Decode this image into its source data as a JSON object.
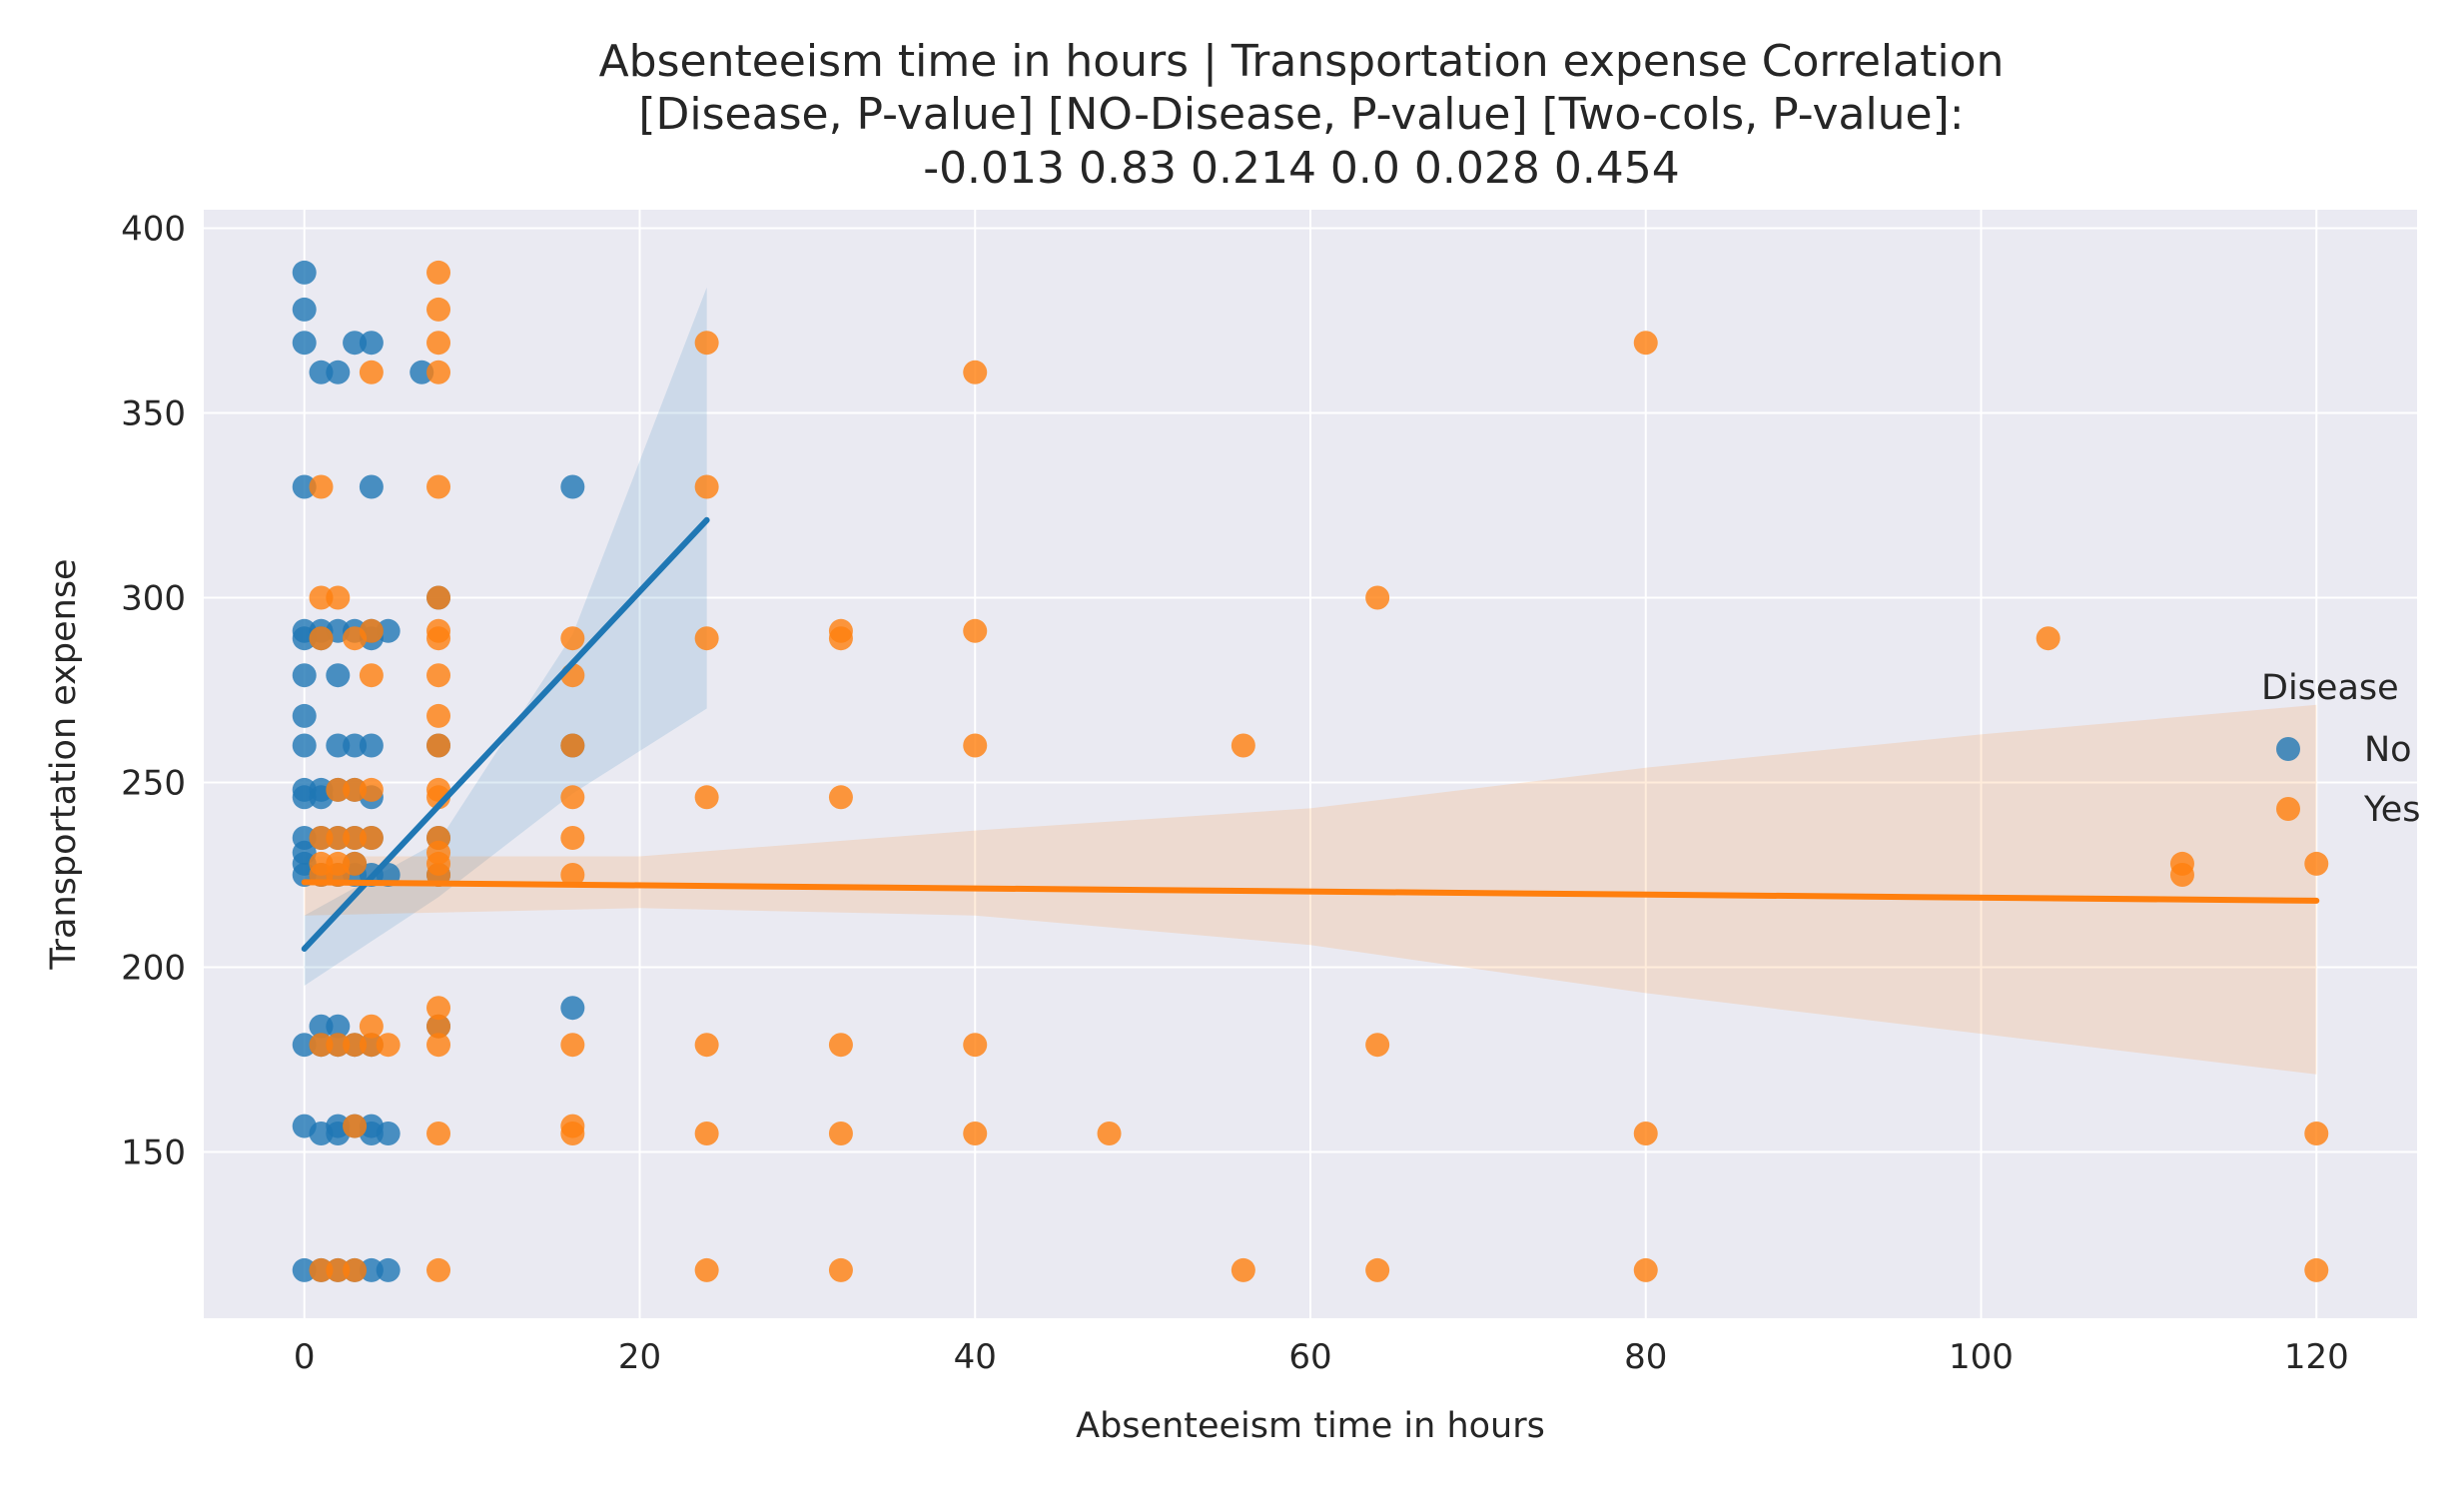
{
  "chart_data": {
    "type": "scatter",
    "title_lines": [
      "Absenteeism time in hours | Transportation expense    Correlation",
      "[Disease,        P-value]    [NO-Disease,     P-value]    [Two-cols,  P-value]:",
      "-0.013                0.83                0.214                  0.0          0.028           0.454"
    ],
    "xlabel": "Absenteeism time in hours",
    "ylabel": "Transportation expense",
    "xlim": [
      -6,
      126
    ],
    "ylim": [
      105,
      405
    ],
    "xticks": [
      0,
      20,
      40,
      60,
      80,
      100,
      120
    ],
    "yticks": [
      150,
      200,
      250,
      300,
      350,
      400
    ],
    "grid": true,
    "legend": {
      "title": "Disease",
      "placement": "right",
      "entries": [
        "No",
        "Yes"
      ]
    },
    "colors": {
      "No": "#1f77b4",
      "Yes": "#ff7f0e",
      "background": "#eaeaf2",
      "grid": "#ffffff"
    },
    "series": [
      {
        "name": "No",
        "color": "#1f77b4",
        "regression": {
          "x": [
            0,
            24
          ],
          "y": [
            205,
            321
          ]
        },
        "ci": {
          "x": [
            0,
            8,
            16,
            24
          ],
          "upper": [
            214,
            234,
            290,
            384
          ],
          "lower": [
            195,
            219,
            247,
            270
          ]
        },
        "points": [
          [
            0,
            388
          ],
          [
            0,
            378
          ],
          [
            0,
            369
          ],
          [
            0,
            330
          ],
          [
            0,
            291
          ],
          [
            0,
            289
          ],
          [
            0,
            279
          ],
          [
            0,
            268
          ],
          [
            0,
            260
          ],
          [
            0,
            248
          ],
          [
            0,
            246
          ],
          [
            0,
            235
          ],
          [
            0,
            231
          ],
          [
            0,
            228
          ],
          [
            0,
            225
          ],
          [
            0,
            179
          ],
          [
            0,
            157
          ],
          [
            0,
            118
          ],
          [
            1,
            361
          ],
          [
            1,
            291
          ],
          [
            1,
            289
          ],
          [
            1,
            248
          ],
          [
            1,
            246
          ],
          [
            1,
            235
          ],
          [
            1,
            225
          ],
          [
            1,
            184
          ],
          [
            1,
            179
          ],
          [
            1,
            155
          ],
          [
            1,
            118
          ],
          [
            2,
            361
          ],
          [
            2,
            291
          ],
          [
            2,
            279
          ],
          [
            2,
            260
          ],
          [
            2,
            248
          ],
          [
            2,
            235
          ],
          [
            2,
            225
          ],
          [
            2,
            184
          ],
          [
            2,
            179
          ],
          [
            2,
            157
          ],
          [
            2,
            155
          ],
          [
            2,
            118
          ],
          [
            3,
            369
          ],
          [
            3,
            291
          ],
          [
            3,
            260
          ],
          [
            3,
            248
          ],
          [
            3,
            235
          ],
          [
            3,
            228
          ],
          [
            3,
            225
          ],
          [
            3,
            179
          ],
          [
            3,
            157
          ],
          [
            3,
            118
          ],
          [
            4,
            369
          ],
          [
            4,
            330
          ],
          [
            4,
            289
          ],
          [
            4,
            291
          ],
          [
            4,
            260
          ],
          [
            4,
            246
          ],
          [
            4,
            235
          ],
          [
            4,
            225
          ],
          [
            4,
            179
          ],
          [
            4,
            157
          ],
          [
            4,
            155
          ],
          [
            4,
            118
          ],
          [
            5,
            291
          ],
          [
            5,
            225
          ],
          [
            5,
            155
          ],
          [
            5,
            118
          ],
          [
            7,
            361
          ],
          [
            8,
            300
          ],
          [
            8,
            260
          ],
          [
            8,
            235
          ],
          [
            8,
            225
          ],
          [
            8,
            184
          ],
          [
            16,
            330
          ],
          [
            16,
            260
          ],
          [
            16,
            189
          ]
        ]
      },
      {
        "name": "Yes",
        "color": "#ff7f0e",
        "regression": {
          "x": [
            0,
            120
          ],
          "y": [
            223,
            218
          ]
        },
        "ci": {
          "x": [
            0,
            20,
            40,
            60,
            80,
            100,
            120
          ],
          "upper": [
            230,
            230,
            237,
            243,
            254,
            263,
            271
          ],
          "lower": [
            214,
            216,
            214,
            206,
            193,
            182,
            171
          ]
        },
        "points": [
          [
            1,
            330
          ],
          [
            1,
            300
          ],
          [
            1,
            289
          ],
          [
            1,
            235
          ],
          [
            1,
            228
          ],
          [
            1,
            225
          ],
          [
            1,
            179
          ],
          [
            1,
            118
          ],
          [
            2,
            300
          ],
          [
            2,
            248
          ],
          [
            2,
            235
          ],
          [
            2,
            228
          ],
          [
            2,
            225
          ],
          [
            2,
            179
          ],
          [
            2,
            118
          ],
          [
            3,
            289
          ],
          [
            3,
            248
          ],
          [
            3,
            235
          ],
          [
            3,
            228
          ],
          [
            3,
            179
          ],
          [
            3,
            157
          ],
          [
            3,
            118
          ],
          [
            4,
            361
          ],
          [
            4,
            291
          ],
          [
            4,
            279
          ],
          [
            4,
            248
          ],
          [
            4,
            235
          ],
          [
            4,
            184
          ],
          [
            4,
            179
          ],
          [
            5,
            179
          ],
          [
            8,
            388
          ],
          [
            8,
            378
          ],
          [
            8,
            369
          ],
          [
            8,
            361
          ],
          [
            8,
            330
          ],
          [
            8,
            300
          ],
          [
            8,
            291
          ],
          [
            8,
            289
          ],
          [
            8,
            279
          ],
          [
            8,
            268
          ],
          [
            8,
            260
          ],
          [
            8,
            248
          ],
          [
            8,
            246
          ],
          [
            8,
            235
          ],
          [
            8,
            231
          ],
          [
            8,
            228
          ],
          [
            8,
            225
          ],
          [
            8,
            189
          ],
          [
            8,
            184
          ],
          [
            8,
            179
          ],
          [
            8,
            155
          ],
          [
            8,
            118
          ],
          [
            16,
            289
          ],
          [
            16,
            279
          ],
          [
            16,
            260
          ],
          [
            16,
            246
          ],
          [
            16,
            235
          ],
          [
            16,
            225
          ],
          [
            16,
            179
          ],
          [
            16,
            157
          ],
          [
            16,
            155
          ],
          [
            24,
            369
          ],
          [
            24,
            330
          ],
          [
            24,
            289
          ],
          [
            24,
            246
          ],
          [
            24,
            179
          ],
          [
            24,
            155
          ],
          [
            24,
            118
          ],
          [
            32,
            291
          ],
          [
            32,
            289
          ],
          [
            32,
            246
          ],
          [
            32,
            179
          ],
          [
            32,
            155
          ],
          [
            32,
            118
          ],
          [
            40,
            361
          ],
          [
            40,
            291
          ],
          [
            40,
            260
          ],
          [
            40,
            179
          ],
          [
            40,
            155
          ],
          [
            48,
            155
          ],
          [
            56,
            260
          ],
          [
            56,
            118
          ],
          [
            64,
            300
          ],
          [
            64,
            179
          ],
          [
            64,
            118
          ],
          [
            80,
            369
          ],
          [
            80,
            155
          ],
          [
            80,
            118
          ],
          [
            104,
            289
          ],
          [
            112,
            228
          ],
          [
            112,
            225
          ],
          [
            120,
            228
          ],
          [
            120,
            155
          ],
          [
            120,
            118
          ]
        ]
      }
    ]
  }
}
